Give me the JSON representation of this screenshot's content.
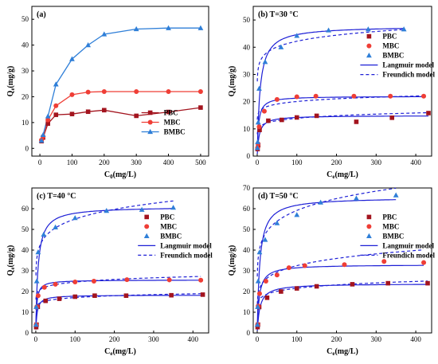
{
  "colors": {
    "PBC": "#a3141e",
    "MBC": "#ef3e36",
    "BMBC": "#2f7fd8",
    "langmuir": "#1d1fd6",
    "freundlich": "#1d1fd6"
  },
  "chart_data": [
    {
      "type": "line",
      "panel": "(a)",
      "xlabel_main": "C",
      "xlabel_sub": "0",
      "xlabel_unit": "(mg/L)",
      "ylabel_main": "Q",
      "ylabel_sub": "e",
      "ylabel_unit": "(mg/g)",
      "xlim": [
        -25,
        525
      ],
      "ylim": [
        -3,
        55
      ],
      "xticks": [
        0,
        100,
        200,
        300,
        400,
        500
      ],
      "yticks": [
        0,
        10,
        20,
        30,
        40,
        50
      ],
      "legend_position": "bottom-right",
      "series": [
        {
          "name": "PBC",
          "marker": "square",
          "color": "#a3141e",
          "x": [
            5,
            10,
            25,
            50,
            100,
            150,
            200,
            300,
            400,
            500
          ],
          "y": [
            2.8,
            4.2,
            9.6,
            13.0,
            13.3,
            14.2,
            14.8,
            12.6,
            14.1,
            15.8
          ]
        },
        {
          "name": "MBC",
          "marker": "circle",
          "color": "#ef3e36",
          "x": [
            5,
            10,
            25,
            50,
            100,
            150,
            200,
            300,
            400,
            500
          ],
          "y": [
            3.2,
            4.6,
            11.0,
            16.5,
            20.8,
            21.8,
            22.0,
            22.0,
            22.0,
            22.0
          ]
        },
        {
          "name": "BMBC",
          "marker": "triangle",
          "color": "#2f7fd8",
          "x": [
            5,
            10,
            25,
            50,
            100,
            150,
            200,
            300,
            400,
            500
          ],
          "y": [
            3.0,
            5.2,
            12.4,
            24.8,
            34.6,
            40.0,
            44.2,
            46.2,
            46.6,
            46.6
          ]
        }
      ]
    },
    {
      "type": "scatter",
      "panel": "(b) T=30 °C",
      "xlabel_main": "C",
      "xlabel_sub": "e",
      "xlabel_unit": "(mg/L)",
      "ylabel_main": "Q",
      "ylabel_sub": "e",
      "ylabel_unit": "(mg/g)",
      "xlim": [
        -10,
        440
      ],
      "ylim": [
        0,
        55
      ],
      "xticks": [
        0,
        100,
        200,
        300,
        400
      ],
      "yticks": [
        0,
        10,
        20,
        30,
        40,
        50
      ],
      "legend_position": "right",
      "model_labels": [
        "Langmuir model",
        "Freundich model"
      ],
      "series": [
        {
          "name": "PBC",
          "marker": "square",
          "color": "#a3141e",
          "x": [
            1,
            2.5,
            6,
            28,
            62,
            100,
            150,
            250,
            340,
            432
          ],
          "y": [
            2.6,
            4.0,
            9.6,
            13.0,
            13.3,
            14.2,
            14.8,
            12.6,
            14.1,
            15.8
          ],
          "langmuir": {
            "qm": 14.9,
            "k": 0.2
          },
          "freundlich": {
            "kf": 9.0,
            "n": 10.6
          }
        },
        {
          "name": "MBC",
          "marker": "circle",
          "color": "#ef3e36",
          "x": [
            1,
            2.5,
            5,
            18,
            50,
            100,
            148,
            244,
            336,
            420
          ],
          "y": [
            3.0,
            4.5,
            10.8,
            16.5,
            20.8,
            21.8,
            22.0,
            22.0,
            22.0,
            22.0
          ],
          "langmuir": {
            "qm": 22.0,
            "k": 0.3
          },
          "freundlich": {
            "kf": 14.6,
            "n": 14.5
          }
        },
        {
          "name": "BMBC",
          "marker": "triangle",
          "color": "#2f7fd8",
          "x": [
            0.5,
            1.2,
            2.5,
            5,
            20,
            60,
            100,
            180,
            280,
            370
          ],
          "y": [
            3.0,
            5.2,
            12.4,
            24.8,
            34.6,
            40.0,
            44.2,
            46.2,
            46.6,
            46.6
          ],
          "langmuir": {
            "qm": 47.8,
            "k": 0.14
          },
          "freundlich": {
            "kf": 30.0,
            "n": 13.5
          }
        }
      ]
    },
    {
      "type": "scatter",
      "panel": "(c) T=40 °C",
      "xlabel_main": "C",
      "xlabel_sub": "e",
      "xlabel_unit": "(mg/L)",
      "ylabel_main": "Q",
      "ylabel_sub": "e",
      "ylabel_unit": "(mg/g)",
      "xlim": [
        -10,
        440
      ],
      "ylim": [
        0,
        70
      ],
      "xticks": [
        0,
        100,
        200,
        300,
        400
      ],
      "yticks": [
        0,
        10,
        20,
        30,
        40,
        50,
        60
      ],
      "legend_position": "right",
      "model_labels": [
        "Langmuir model",
        "Freundich model"
      ],
      "series": [
        {
          "name": "PBC",
          "marker": "square",
          "color": "#a3141e",
          "x": [
            1,
            2,
            5,
            25,
            60,
            100,
            150,
            230,
            345,
            425
          ],
          "y": [
            2.8,
            4.0,
            12.6,
            15.5,
            16.5,
            17.5,
            18.0,
            18.0,
            18.2,
            18.5
          ],
          "langmuir": {
            "qm": 18.3,
            "k": 0.32
          },
          "freundlich": {
            "kf": 12.2,
            "n": 13.7
          }
        },
        {
          "name": "MBC",
          "marker": "circle",
          "color": "#ef3e36",
          "x": [
            1,
            2.5,
            6,
            22,
            50,
            100,
            148,
            232,
            340,
            420
          ],
          "y": [
            4.0,
            12.6,
            18.0,
            22.0,
            23.5,
            24.6,
            25.0,
            25.7,
            25.6,
            25.5
          ],
          "langmuir": {
            "qm": 25.6,
            "k": 0.42
          },
          "freundlich": {
            "kf": 17.6,
            "n": 13.8
          }
        },
        {
          "name": "BMBC",
          "marker": "triangle",
          "color": "#2f7fd8",
          "x": [
            0.5,
            1.2,
            2.5,
            6,
            20,
            50,
            100,
            180,
            270,
            350
          ],
          "y": [
            4.0,
            12.6,
            25.0,
            39.0,
            47.5,
            51.0,
            55.5,
            59.0,
            59.5,
            60.5
          ],
          "langmuir": {
            "qm": 61.0,
            "k": 0.18
          },
          "freundlich": {
            "kf": 32.0,
            "n": 8.5
          }
        }
      ]
    },
    {
      "type": "scatter",
      "panel": "(d) T=50 °C",
      "xlabel_main": "C",
      "xlabel_sub": "e",
      "xlabel_unit": "(mg/L)",
      "ylabel_main": "Q",
      "ylabel_sub": "e",
      "ylabel_unit": "(mg/g)",
      "xlim": [
        -10,
        440
      ],
      "ylim": [
        0,
        70
      ],
      "xticks": [
        0,
        100,
        200,
        300,
        400
      ],
      "yticks": [
        0,
        10,
        20,
        30,
        40,
        50,
        60,
        70
      ],
      "legend_position": "right",
      "model_labels": [
        "Langmuir model",
        "Freundich model"
      ],
      "series": [
        {
          "name": "PBC",
          "marker": "square",
          "color": "#a3141e",
          "x": [
            1,
            2,
            5,
            25,
            60,
            100,
            150,
            240,
            330,
            430
          ],
          "y": [
            2.8,
            4.0,
            12.5,
            17.0,
            20.0,
            21.5,
            22.5,
            23.5,
            24.0,
            24.0
          ],
          "langmuir": {
            "qm": 23.8,
            "k": 0.15
          },
          "freundlich": {
            "kf": 13.5,
            "n": 9.8
          }
        },
        {
          "name": "MBC",
          "marker": "circle",
          "color": "#ef3e36",
          "x": [
            1,
            2.5,
            6,
            22,
            50,
            80,
            120,
            220,
            320,
            420
          ],
          "y": [
            4.0,
            13.0,
            19.0,
            25.0,
            28.0,
            31.5,
            32.5,
            33.0,
            34.5,
            34.0
          ],
          "langmuir": {
            "qm": 33.0,
            "k": 0.2
          },
          "freundlich": {
            "kf": 16.5,
            "n": 6.8
          }
        },
        {
          "name": "BMBC",
          "marker": "triangle",
          "color": "#2f7fd8",
          "x": [
            0.5,
            1.2,
            2.5,
            6,
            20,
            50,
            100,
            160,
            250,
            350
          ],
          "y": [
            4.0,
            12.6,
            25.0,
            39.0,
            45.0,
            53.0,
            57.0,
            63.0,
            65.0,
            66.5
          ],
          "langmuir": {
            "qm": 65.5,
            "k": 0.16
          },
          "freundlich": {
            "kf": 32.0,
            "n": 7.5
          }
        }
      ]
    }
  ]
}
